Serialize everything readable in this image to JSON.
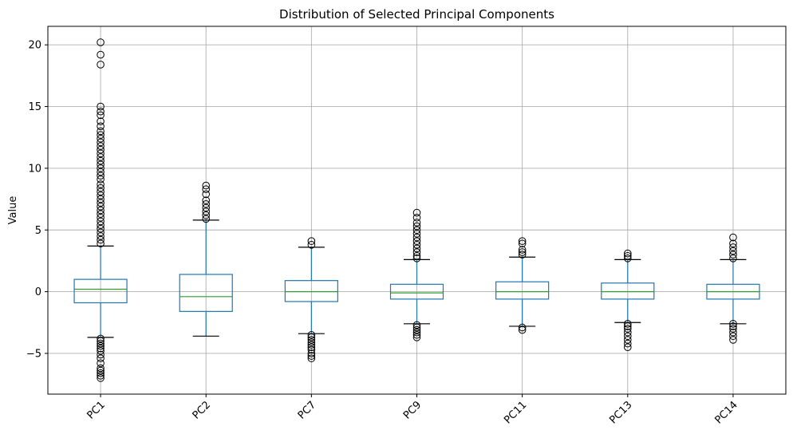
{
  "chart_data": {
    "type": "box",
    "title": "Distribution of Selected Principal Components",
    "xlabel": "",
    "ylabel": "Value",
    "ylim": [
      -8.3,
      21.5
    ],
    "yticks": [
      -5,
      0,
      5,
      10,
      15,
      20
    ],
    "grid": true,
    "legend": "none",
    "colors": {
      "box": "#1f77b4",
      "median": "#2ca02c",
      "grid": "#b0b0b0",
      "flier": "#000000"
    },
    "categories": [
      "PC1",
      "PC2",
      "PC7",
      "PC9",
      "PC11",
      "PC13",
      "PC14"
    ],
    "boxes": [
      {
        "label": "PC1",
        "whisker_low": -3.7,
        "q1": -0.9,
        "median": 0.2,
        "q3": 1.0,
        "whisker_high": 3.7,
        "fliers": [
          20.2,
          19.2,
          18.4,
          15.0,
          14.6,
          14.3,
          13.8,
          13.4,
          13.0,
          12.7,
          12.4,
          12.1,
          11.8,
          11.5,
          11.2,
          10.9,
          10.6,
          10.3,
          10.0,
          9.7,
          9.4,
          9.1,
          8.7,
          8.4,
          8.1,
          7.8,
          7.5,
          7.2,
          6.9,
          6.6,
          6.3,
          6.0,
          5.7,
          5.4,
          5.1,
          4.8,
          4.5,
          4.2,
          3.9,
          -3.8,
          -4.0,
          -4.2,
          -4.4,
          -4.6,
          -4.8,
          -5.1,
          -5.4,
          -5.8,
          -6.2,
          -6.4,
          -6.6,
          -6.8,
          -7.0
        ]
      },
      {
        "label": "PC2",
        "whisker_low": -3.6,
        "q1": -1.6,
        "median": -0.4,
        "q3": 1.4,
        "whisker_high": 5.8,
        "fliers": [
          8.6,
          8.3,
          7.9,
          7.4,
          7.1,
          6.8,
          6.5,
          6.2,
          5.9
        ]
      },
      {
        "label": "PC7",
        "whisker_low": -3.4,
        "q1": -0.8,
        "median": 0.0,
        "q3": 0.9,
        "whisker_high": 3.6,
        "fliers": [
          4.1,
          3.8,
          -3.5,
          -3.7,
          -3.9,
          -4.1,
          -4.3,
          -4.5,
          -4.7,
          -5.0,
          -5.2,
          -5.4
        ]
      },
      {
        "label": "PC9",
        "whisker_low": -2.6,
        "q1": -0.6,
        "median": -0.1,
        "q3": 0.6,
        "whisker_high": 2.6,
        "fliers": [
          6.4,
          6.0,
          5.6,
          5.3,
          5.0,
          4.7,
          4.4,
          4.1,
          3.8,
          3.5,
          3.2,
          2.9,
          2.7,
          -2.7,
          -2.9,
          -3.1,
          -3.3,
          -3.5,
          -3.7
        ]
      },
      {
        "label": "PC11",
        "whisker_low": -2.8,
        "q1": -0.6,
        "median": 0.0,
        "q3": 0.8,
        "whisker_high": 2.8,
        "fliers": [
          4.1,
          3.9,
          3.4,
          3.2,
          3.0,
          -2.9,
          -3.1
        ]
      },
      {
        "label": "PC13",
        "whisker_low": -2.5,
        "q1": -0.6,
        "median": 0.0,
        "q3": 0.7,
        "whisker_high": 2.6,
        "fliers": [
          3.1,
          2.9,
          2.7,
          -2.6,
          -2.8,
          -3.0,
          -3.3,
          -3.6,
          -3.9,
          -4.2,
          -4.5
        ]
      },
      {
        "label": "PC14",
        "whisker_low": -2.6,
        "q1": -0.6,
        "median": 0.0,
        "q3": 0.6,
        "whisker_high": 2.6,
        "fliers": [
          4.4,
          3.9,
          3.6,
          3.3,
          3.0,
          2.7,
          -2.6,
          -2.8,
          -3.0,
          -3.3,
          -3.6,
          -3.9
        ]
      }
    ]
  }
}
